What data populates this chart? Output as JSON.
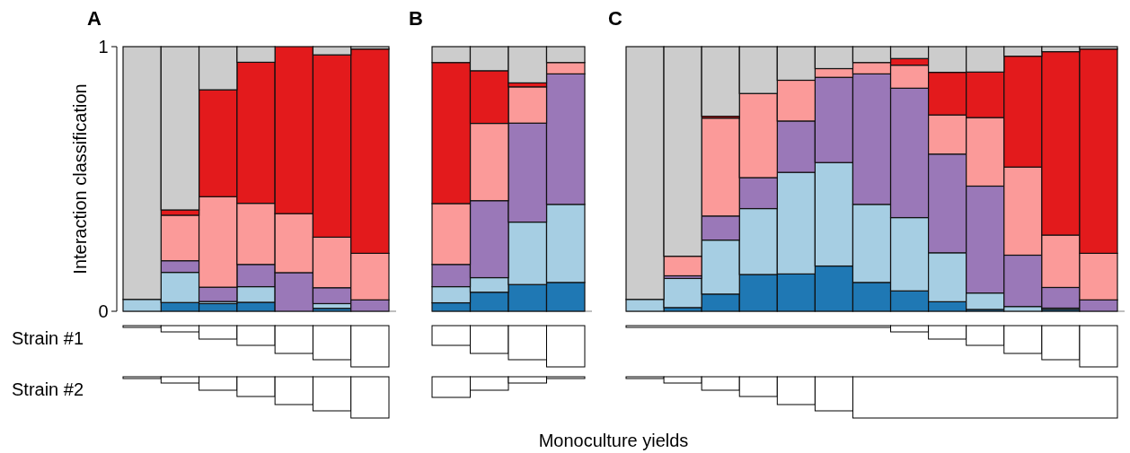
{
  "chart_data": [
    {
      "type": "bar",
      "title": "A",
      "ylabel": "Interaction classification",
      "stacked": true,
      "categories": [
        null,
        null,
        null,
        null,
        null,
        null,
        null
      ],
      "ylim": [
        0,
        1
      ],
      "yticks": [
        0,
        1
      ],
      "annotations": [
        "Strain #1",
        "Strain #2"
      ],
      "series": [
        {
          "color": "#1f78b4",
          "values": [
            0,
            0.033,
            0.029,
            0.034,
            0,
            0.011,
            0
          ]
        },
        {
          "color": "#a6cee3",
          "values": [
            0.045,
            0.114,
            0.008,
            0.059,
            0,
            0.018,
            0
          ]
        },
        {
          "color": "#9a78b8",
          "values": [
            0,
            0.044,
            0.054,
            0.084,
            0.146,
            0.06,
            0.043
          ]
        },
        {
          "color": "#fb9a99",
          "values": [
            0,
            0.172,
            0.342,
            0.231,
            0.223,
            0.191,
            0.176
          ]
        },
        {
          "color": "#e31a1c",
          "values": [
            0,
            0.02,
            0.404,
            0.533,
            0.631,
            0.689,
            0.772
          ]
        },
        {
          "color": "#cccccc",
          "values": [
            0.955,
            0.617,
            0.163,
            0.059,
            0,
            0.031,
            0.009
          ]
        }
      ]
    },
    {
      "type": "bar",
      "title": "B",
      "xlabel": "Monoculture yields",
      "stacked": true,
      "categories": [
        null,
        null,
        null,
        null
      ],
      "ylim": [
        0,
        1
      ],
      "tick_labels": false,
      "series": [
        {
          "color": "#1f78b4",
          "values": [
            0.032,
            0.072,
            0.101,
            0.109
          ]
        },
        {
          "color": "#a6cee3",
          "values": [
            0.061,
            0.055,
            0.236,
            0.295
          ]
        },
        {
          "color": "#9a78b8",
          "values": [
            0.084,
            0.291,
            0.374,
            0.493
          ]
        },
        {
          "color": "#fb9a99",
          "values": [
            0.23,
            0.292,
            0.137,
            0.043
          ]
        },
        {
          "color": "#e31a1c",
          "values": [
            0.533,
            0.199,
            0.015,
            0
          ]
        },
        {
          "color": "#cccccc",
          "values": [
            0.06,
            0.091,
            0.137,
            0.06
          ]
        }
      ]
    },
    {
      "type": "bar",
      "title": "C",
      "stacked": true,
      "categories": [
        null,
        null,
        null,
        null,
        null,
        null,
        null,
        null,
        null,
        null,
        null,
        null,
        null
      ],
      "ylim": [
        0,
        1
      ],
      "tick_labels": false,
      "series": [
        {
          "color": "#1f78b4",
          "values": [
            0,
            0.014,
            0.065,
            0.139,
            0.141,
            0.171,
            0.109,
            0.077,
            0.036,
            0.007,
            0,
            0.007,
            0
          ]
        },
        {
          "color": "#a6cee3",
          "values": [
            0.045,
            0.11,
            0.204,
            0.249,
            0.384,
            0.391,
            0.295,
            0.277,
            0.185,
            0.062,
            0.018,
            0.005,
            0
          ]
        },
        {
          "color": "#9a78b8",
          "values": [
            0,
            0.01,
            0.091,
            0.117,
            0.194,
            0.322,
            0.493,
            0.489,
            0.373,
            0.404,
            0.194,
            0.078,
            0.043
          ]
        },
        {
          "color": "#fb9a99",
          "values": [
            0,
            0.074,
            0.37,
            0.318,
            0.154,
            0.033,
            0.043,
            0.087,
            0.148,
            0.259,
            0.333,
            0.198,
            0.176
          ]
        },
        {
          "color": "#e31a1c",
          "values": [
            0,
            0,
            0.007,
            0,
            0,
            0,
            0,
            0.025,
            0.161,
            0.172,
            0.419,
            0.693,
            0.772
          ]
        },
        {
          "color": "#cccccc",
          "values": [
            0.955,
            0.792,
            0.263,
            0.177,
            0.127,
            0.083,
            0.06,
            0.045,
            0.097,
            0.096,
            0.036,
            0.019,
            0.009
          ]
        }
      ]
    }
  ]
}
